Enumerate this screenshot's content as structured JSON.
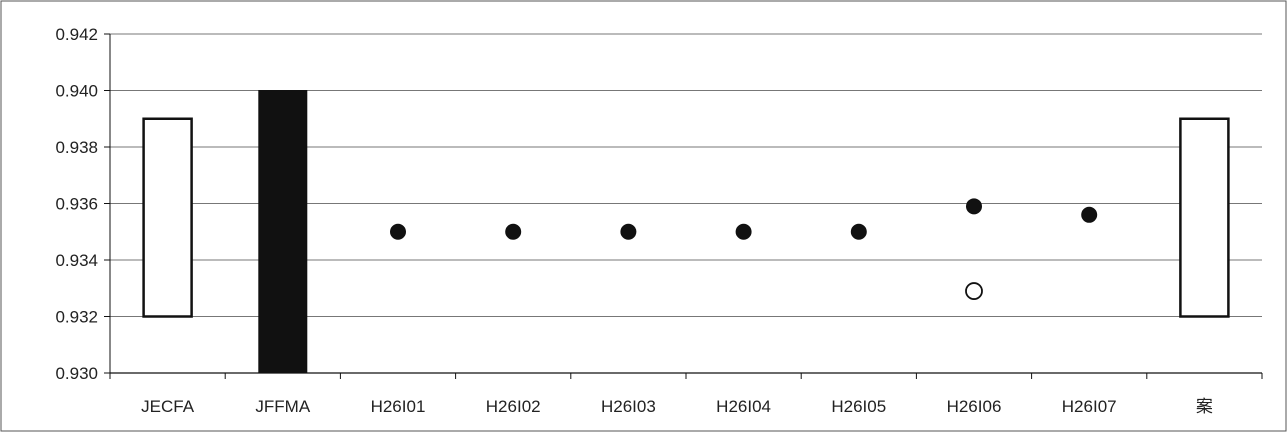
{
  "chart_data": {
    "type": "range-and-dot",
    "title": "",
    "xlabel": "",
    "ylabel": "",
    "ylim": [
      0.93,
      0.942
    ],
    "yticks": [
      "0.930",
      "0.932",
      "0.934",
      "0.936",
      "0.938",
      "0.940",
      "0.942"
    ],
    "grid": true,
    "legend": "none",
    "categories": [
      "JECFA",
      "JFFMA",
      "H26I01",
      "H26I02",
      "H26I03",
      "H26I04",
      "H26I05",
      "H26I06",
      "H26I07",
      "案"
    ],
    "ranges": [
      {
        "category": "JECFA",
        "low": 0.932,
        "high": 0.939,
        "fill": "white"
      },
      {
        "category": "JFFMA",
        "low": 0.93,
        "high": 0.94,
        "fill": "black"
      },
      {
        "category": "案",
        "low": 0.932,
        "high": 0.939,
        "fill": "white"
      }
    ],
    "points": [
      {
        "category": "H26I01",
        "value": 0.935,
        "style": "filled"
      },
      {
        "category": "H26I02",
        "value": 0.935,
        "style": "filled"
      },
      {
        "category": "H26I03",
        "value": 0.935,
        "style": "filled"
      },
      {
        "category": "H26I04",
        "value": 0.935,
        "style": "filled"
      },
      {
        "category": "H26I05",
        "value": 0.935,
        "style": "filled"
      },
      {
        "category": "H26I06",
        "value": 0.9359,
        "style": "filled"
      },
      {
        "category": "H26I06",
        "value": 0.9329,
        "style": "open"
      },
      {
        "category": "H26I07",
        "value": 0.9356,
        "style": "filled"
      }
    ],
    "colors": {
      "ink": "#111111",
      "grid": "#777777",
      "open_fill": "#ffffff"
    }
  }
}
